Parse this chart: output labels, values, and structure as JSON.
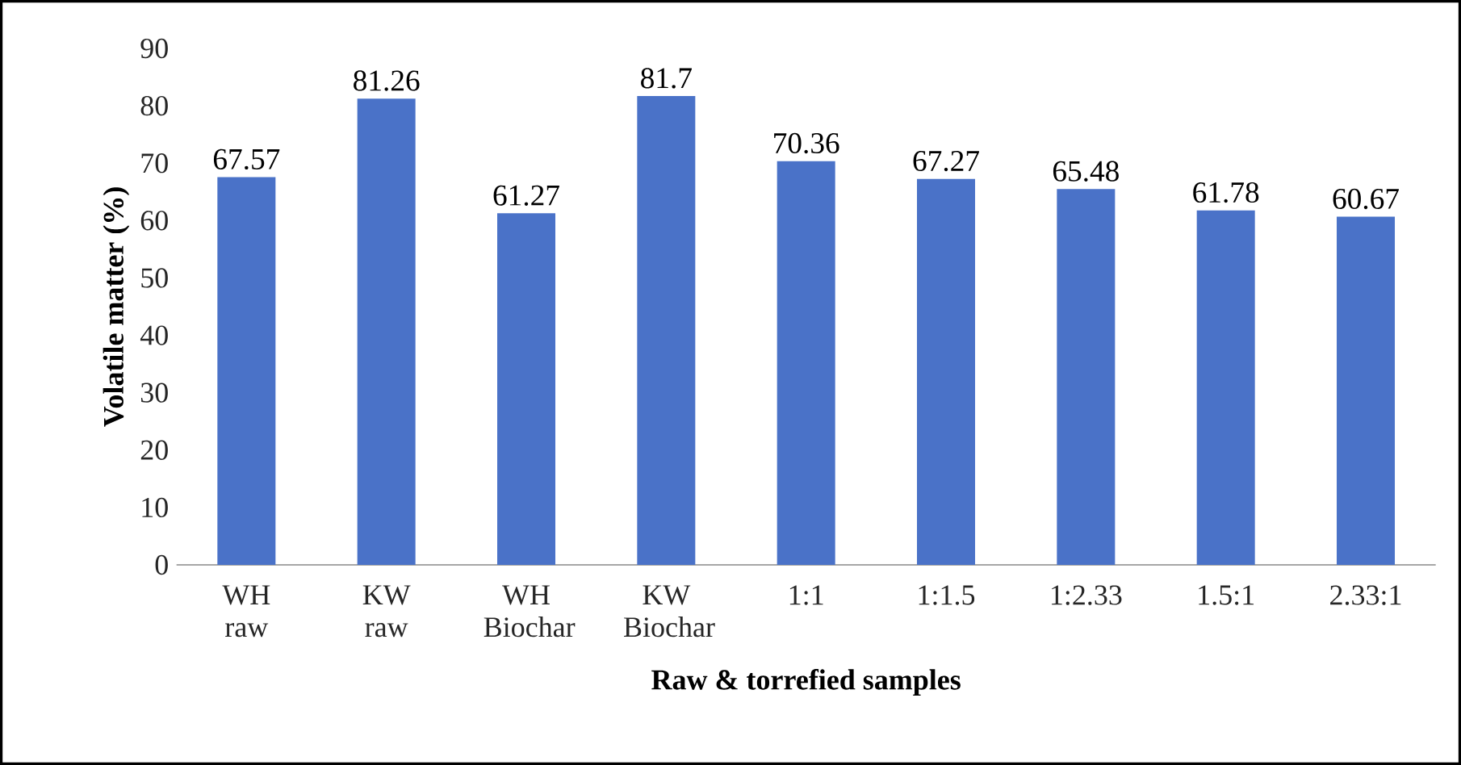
{
  "chart_data": {
    "type": "bar",
    "xlabel": "Raw & torrefied samples",
    "ylabel": "Volatile matter (%)",
    "categories": [
      "WH raw",
      "KW raw",
      "WH Biochar",
      "KW Biochar",
      "1:1",
      "1:1.5",
      "1:2.33",
      "1.5:1",
      "2.33:1"
    ],
    "values": [
      67.57,
      81.26,
      61.27,
      81.7,
      70.36,
      67.27,
      65.48,
      61.78,
      60.67
    ],
    "color": "#4a72c8",
    "ylim": [
      0,
      90
    ],
    "yticks": [
      0,
      10,
      20,
      30,
      40,
      50,
      60,
      70,
      80,
      90
    ],
    "data_labels": true
  }
}
